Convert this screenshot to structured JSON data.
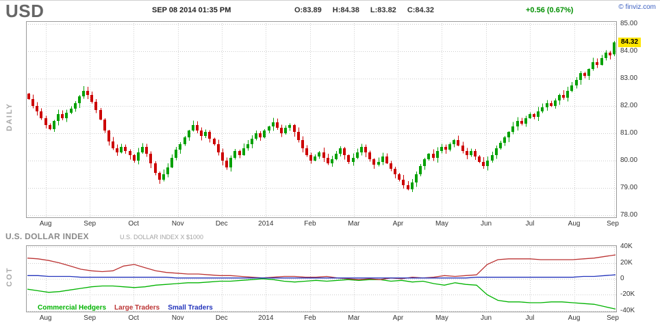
{
  "header": {
    "symbol": "USD",
    "timestamp": "SEP 08 2014 01:35 PM",
    "ohlc": [
      "O:83.89",
      "H:84.38",
      "L:83.82",
      "C:84.32"
    ],
    "change": "+0.56 (0.67%)",
    "change_color": "#008f00",
    "watermark": "© finviz.com"
  },
  "left_labels": {
    "main": "DAILY",
    "cot": "COT"
  },
  "section": {
    "title": "U.S. DOLLAR INDEX",
    "subtitle": "U.S. DOLLAR INDEX X $1000"
  },
  "price_tag": "84.32",
  "chart_data": [
    {
      "type": "candlestick",
      "title": "U.S. Dollar Index futures, daily candlesticks, Aug 2013 - Sep 8 2014",
      "period": "DAILY",
      "x_tick_labels": [
        "Aug",
        "Sep",
        "Oct",
        "Nov",
        "Dec",
        "2014",
        "Feb",
        "Mar",
        "Apr",
        "May",
        "Jun",
        "Jul",
        "Aug",
        "Sep"
      ],
      "month_tick_index": [
        4,
        14.5,
        24.9,
        35.4,
        45.8,
        56.3,
        66.8,
        77.2,
        87.7,
        98.1,
        108.6,
        119,
        129.5,
        139
      ],
      "y_ticks": [
        85,
        84,
        83,
        82,
        81,
        80,
        79,
        78
      ],
      "y_tick_labels": [
        "85.00",
        "84.00",
        "83.00",
        "82.00",
        "81.00",
        "80.00",
        "79.00",
        "78.00"
      ],
      "ylim": [
        77.9,
        85.1
      ],
      "grid": true,
      "first_open": 82.45,
      "closes": [
        82.25,
        82.0,
        81.8,
        81.55,
        81.3,
        81.15,
        81.45,
        81.7,
        81.55,
        81.75,
        81.9,
        82.1,
        82.35,
        82.55,
        82.4,
        82.15,
        81.85,
        81.5,
        81.1,
        80.7,
        80.45,
        80.3,
        80.5,
        80.35,
        80.2,
        80.0,
        80.3,
        80.5,
        80.25,
        79.9,
        79.55,
        79.3,
        79.5,
        79.75,
        80.1,
        80.4,
        80.6,
        80.85,
        81.1,
        81.3,
        81.1,
        80.9,
        81.05,
        80.8,
        80.6,
        80.3,
        80.0,
        79.75,
        80.1,
        80.35,
        80.2,
        80.45,
        80.6,
        80.8,
        81.0,
        80.85,
        81.1,
        81.25,
        81.4,
        81.2,
        81.0,
        81.2,
        81.3,
        81.05,
        80.75,
        80.45,
        80.2,
        80.0,
        80.15,
        80.3,
        80.1,
        79.9,
        80.05,
        80.25,
        80.45,
        80.2,
        79.95,
        80.1,
        80.3,
        80.5,
        80.3,
        80.05,
        79.85,
        79.95,
        80.15,
        79.9,
        79.7,
        79.5,
        79.3,
        79.1,
        78.95,
        79.2,
        79.5,
        79.8,
        80.05,
        80.25,
        80.1,
        80.35,
        80.5,
        80.4,
        80.6,
        80.75,
        80.55,
        80.35,
        80.2,
        80.35,
        80.15,
        79.95,
        79.8,
        80.0,
        80.2,
        80.45,
        80.65,
        80.85,
        81.05,
        81.25,
        81.45,
        81.35,
        81.55,
        81.7,
        81.6,
        81.8,
        81.95,
        82.1,
        82.0,
        82.2,
        82.4,
        82.3,
        82.55,
        82.75,
        82.95,
        83.2,
        83.1,
        83.35,
        83.6,
        83.5,
        83.75,
        83.95,
        83.85,
        84.32
      ],
      "last_ohlc": {
        "open": 83.89,
        "high": 84.38,
        "low": 83.82,
        "close": 84.32
      },
      "up_color": "#00a000",
      "down_color": "#cc0000",
      "highlight_price": 84.32,
      "highlight_bg": "#ffe600"
    },
    {
      "type": "line",
      "title": "Commitment of Traders, U.S. DOLLAR INDEX X $1000",
      "y_ticks": [
        40,
        20,
        0,
        -20,
        -40
      ],
      "y_tick_labels": [
        "40K",
        "20K",
        "0",
        "-20K",
        "-40K"
      ],
      "ylim": [
        -42,
        42
      ],
      "grid": true,
      "legend_position": "bottom-left",
      "series": [
        {
          "name": "Commercial Hedgers",
          "color": "#00b300",
          "values": [
            -13,
            -15,
            -17,
            -16,
            -14,
            -12,
            -10,
            -9,
            -9,
            -10,
            -11,
            -10,
            -8,
            -7,
            -6,
            -5,
            -5,
            -4,
            -3,
            -3,
            -2,
            -1,
            0,
            -1,
            -3,
            -4,
            -3,
            -2,
            -3,
            -2,
            -1,
            -2,
            -1,
            -1,
            -3,
            -2,
            -4,
            -3,
            -6,
            -8,
            -5,
            -7,
            -8,
            -20,
            -27,
            -29,
            -29,
            -30,
            -30,
            -29,
            -29,
            -30,
            -31,
            -32,
            -35,
            -38
          ]
        },
        {
          "name": "Large Traders",
          "color": "#bb3333",
          "values": [
            26,
            25,
            23,
            20,
            16,
            12,
            10,
            9,
            10,
            16,
            18,
            14,
            10,
            8,
            7,
            6,
            6,
            5,
            4,
            4,
            3,
            2,
            1,
            2,
            3,
            3,
            2,
            2,
            3,
            1,
            0,
            -1,
            0,
            -1,
            1,
            0,
            2,
            1,
            2,
            4,
            3,
            4,
            5,
            18,
            24,
            25,
            25,
            25,
            24,
            24,
            24,
            24,
            25,
            26,
            28,
            30
          ]
        },
        {
          "name": "Small Traders",
          "color": "#2233bb",
          "values": [
            4,
            4,
            3,
            3,
            3,
            2,
            2,
            2,
            2,
            2,
            2,
            2,
            2,
            2,
            1,
            1,
            1,
            1,
            1,
            1,
            1,
            1,
            1,
            1,
            1,
            1,
            1,
            1,
            1,
            1,
            1,
            1,
            1,
            1,
            1,
            1,
            1,
            1,
            1,
            1,
            1,
            1,
            2,
            2,
            2,
            2,
            2,
            2,
            2,
            2,
            2,
            2,
            3,
            3,
            4,
            5
          ]
        }
      ]
    }
  ]
}
